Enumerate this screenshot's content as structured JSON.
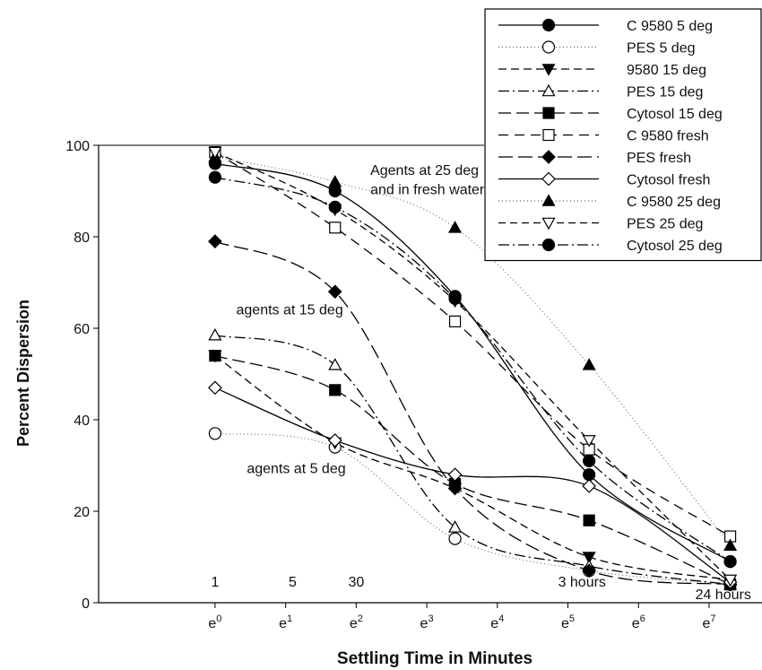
{
  "chart_data": {
    "type": "scatter",
    "xlabel": "Settling Time in Minutes",
    "ylabel": "Percent Dispersion",
    "xlim": [
      -1.65,
      7.75
    ],
    "ylim": [
      0,
      100
    ],
    "x_ticks": [
      {
        "v": 0,
        "base": "e",
        "sup": "0"
      },
      {
        "v": 1,
        "base": "e",
        "sup": "1"
      },
      {
        "v": 2,
        "base": "e",
        "sup": "2"
      },
      {
        "v": 3,
        "base": "e",
        "sup": "3"
      },
      {
        "v": 4,
        "base": "e",
        "sup": "4"
      },
      {
        "v": 5,
        "base": "e",
        "sup": "5"
      },
      {
        "v": 6,
        "base": "e",
        "sup": "6"
      },
      {
        "v": 7,
        "base": "e",
        "sup": "7"
      }
    ],
    "y_ticks": [
      0,
      20,
      40,
      60,
      80,
      100
    ],
    "time_labels": [
      {
        "text": "1",
        "x": 0,
        "y": 3.5
      },
      {
        "text": "5",
        "x": 1.1,
        "y": 3.5
      },
      {
        "text": "30",
        "x": 2.0,
        "y": 3.5
      },
      {
        "text": "3 hours",
        "x": 5.2,
        "y": 3.5
      },
      {
        "text": "24 hours",
        "x": 7.2,
        "y": 0.8
      }
    ],
    "annotations": [
      {
        "text": "Agents at 25 deg",
        "x": 2.2,
        "y": 93.5
      },
      {
        "text": "and in fresh water",
        "x": 2.2,
        "y": 89.3
      },
      {
        "text": "agents at 15 deg",
        "x": 0.3,
        "y": 63
      },
      {
        "text": "agents at 5 deg",
        "x": 0.45,
        "y": 28.3
      }
    ],
    "legend_position": "top-right",
    "series": [
      {
        "name": "C 9580 5 deg",
        "marker": "circle",
        "fill": "#000000",
        "dash": "",
        "x": [
          0,
          1.7,
          3.4,
          5.3,
          7.3
        ],
        "y": [
          96,
          90,
          67,
          28,
          9
        ]
      },
      {
        "name": "PES  5 deg",
        "marker": "circle",
        "fill": "#ffffff",
        "dash": "1,3",
        "x": [
          0,
          1.7,
          3.4,
          5.3,
          7.3
        ],
        "y": [
          37,
          34,
          14,
          7,
          4
        ]
      },
      {
        "name": "9580 15 deg",
        "marker": "triangle-down",
        "fill": "#000000",
        "dash": "9,5",
        "x": [
          0,
          1.7,
          3.4,
          5.3,
          7.3
        ],
        "y": [
          54,
          35,
          25,
          10,
          5
        ]
      },
      {
        "name": "PES 15 deg",
        "marker": "triangle-up",
        "fill": "#ffffff",
        "dash": "12,4,2,4",
        "x": [
          0,
          1.7,
          3.4,
          5.3,
          7.3
        ],
        "y": [
          58.5,
          52,
          16.5,
          8,
          4
        ]
      },
      {
        "name": "Cytosol 15 deg",
        "marker": "square",
        "fill": "#000000",
        "dash": "14,6",
        "x": [
          0,
          1.7,
          3.4,
          5.3,
          7.3
        ],
        "y": [
          54,
          46.5,
          26,
          18,
          4
        ]
      },
      {
        "name": "C 9580 fresh",
        "marker": "square",
        "fill": "#ffffff",
        "dash": "11,7",
        "x": [
          0,
          1.7,
          3.4,
          5.3,
          7.3
        ],
        "y": [
          98.5,
          82,
          61.5,
          33.5,
          14.5
        ]
      },
      {
        "name": "PES fresh",
        "marker": "diamond",
        "fill": "#000000",
        "dash": "16,6",
        "x": [
          0,
          1.7,
          3.4,
          5.3,
          7.3
        ],
        "y": [
          79,
          68,
          25,
          7,
          4
        ]
      },
      {
        "name": "Cytosol fresh",
        "marker": "diamond",
        "fill": "#ffffff",
        "dash": "",
        "x": [
          0,
          1.7,
          3.4,
          5.3,
          7.3
        ],
        "y": [
          47,
          35.5,
          28,
          25.5,
          4.5
        ]
      },
      {
        "name": "C 9580 25 deg",
        "marker": "triangle-up",
        "fill": "#000000",
        "dash": "1,3",
        "x": [
          0,
          1.7,
          3.4,
          5.3,
          7.3
        ],
        "y": [
          97.5,
          92,
          82,
          52,
          12.5
        ]
      },
      {
        "name": "PES 25 deg",
        "marker": "triangle-down",
        "fill": "#ffffff",
        "dash": "8,5",
        "x": [
          0,
          1.7,
          3.4,
          5.3,
          7.3
        ],
        "y": [
          98.5,
          86,
          66,
          35.5,
          5
        ]
      },
      {
        "name": "Cytosol 25 deg",
        "marker": "circle",
        "fill": "#000000",
        "dash": "12,4,2,4",
        "x": [
          0,
          1.7,
          3.4,
          5.3,
          7.3
        ],
        "y": [
          93,
          86.5,
          66.5,
          31,
          9
        ]
      }
    ]
  }
}
